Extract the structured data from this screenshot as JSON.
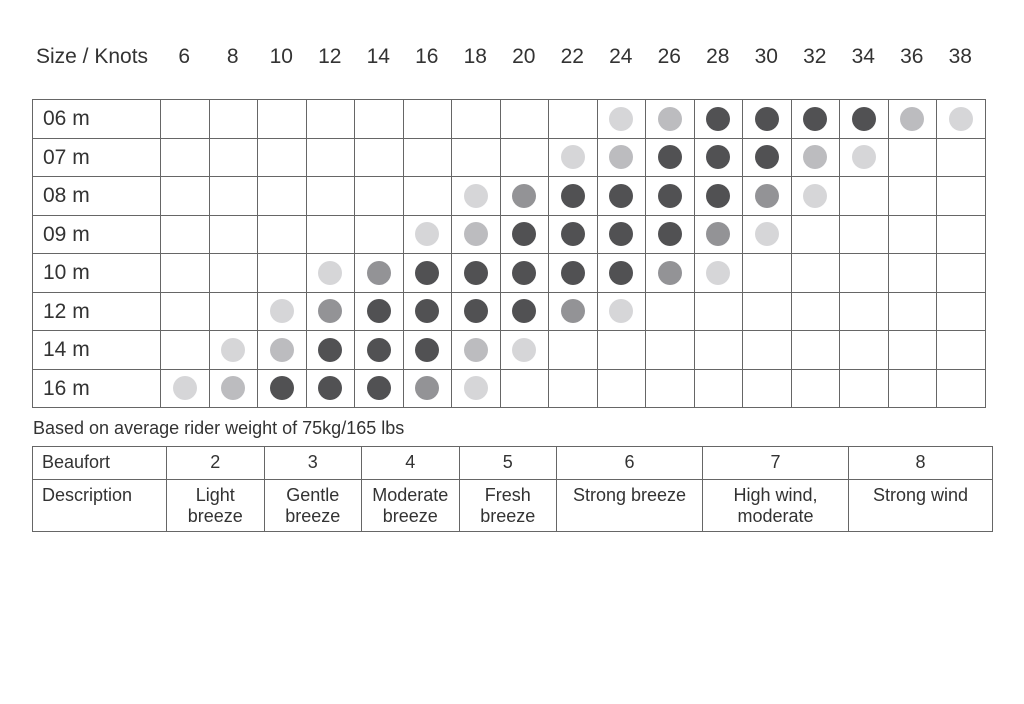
{
  "header": {
    "size_label": "Size / Knots"
  },
  "chart_data": {
    "type": "table",
    "xlabel": "Knots",
    "ylabel": "Size",
    "knots": [
      "6",
      "8",
      "10",
      "12",
      "14",
      "16",
      "18",
      "20",
      "22",
      "24",
      "26",
      "28",
      "30",
      "32",
      "34",
      "36",
      "38"
    ],
    "level_colors": {
      "0": "",
      "1": "#d6d6d8",
      "2": "#bcbcbf",
      "3": "#939396",
      "4": "#515153"
    },
    "rows": [
      {
        "size": "06 m",
        "levels": [
          0,
          0,
          0,
          0,
          0,
          0,
          0,
          0,
          0,
          1,
          2,
          4,
          4,
          4,
          4,
          2,
          1
        ]
      },
      {
        "size": "07 m",
        "levels": [
          0,
          0,
          0,
          0,
          0,
          0,
          0,
          0,
          1,
          2,
          4,
          4,
          4,
          2,
          1,
          0,
          0
        ]
      },
      {
        "size": "08 m",
        "levels": [
          0,
          0,
          0,
          0,
          0,
          0,
          1,
          3,
          4,
          4,
          4,
          4,
          3,
          1,
          0,
          0,
          0
        ]
      },
      {
        "size": "09 m",
        "levels": [
          0,
          0,
          0,
          0,
          0,
          1,
          2,
          4,
          4,
          4,
          4,
          3,
          1,
          0,
          0,
          0,
          0
        ]
      },
      {
        "size": "10 m",
        "levels": [
          0,
          0,
          0,
          1,
          3,
          4,
          4,
          4,
          4,
          4,
          3,
          1,
          0,
          0,
          0,
          0,
          0
        ]
      },
      {
        "size": "12 m",
        "levels": [
          0,
          0,
          1,
          3,
          4,
          4,
          4,
          4,
          3,
          1,
          0,
          0,
          0,
          0,
          0,
          0,
          0
        ]
      },
      {
        "size": "14 m",
        "levels": [
          0,
          1,
          2,
          4,
          4,
          4,
          2,
          1,
          0,
          0,
          0,
          0,
          0,
          0,
          0,
          0,
          0
        ]
      },
      {
        "size": "16 m",
        "levels": [
          1,
          2,
          4,
          4,
          4,
          3,
          1,
          0,
          0,
          0,
          0,
          0,
          0,
          0,
          0,
          0,
          0
        ]
      }
    ]
  },
  "note": "Based on average rider weight of 75kg/165 lbs",
  "beaufort_table": {
    "row1_label": "Beaufort",
    "row2_label": "Description",
    "columns": [
      {
        "force": "2",
        "desc": [
          "Light",
          "breeze"
        ]
      },
      {
        "force": "3",
        "desc": [
          "Gentle",
          "breeze"
        ]
      },
      {
        "force": "4",
        "desc": [
          "Moderate",
          "breeze"
        ]
      },
      {
        "force": "5",
        "desc": [
          "Fresh",
          "breeze"
        ]
      },
      {
        "force": "6",
        "desc": [
          "Strong breeze"
        ]
      },
      {
        "force": "7",
        "desc": [
          "High wind,",
          "moderate"
        ]
      },
      {
        "force": "8",
        "desc": [
          "Strong wind"
        ]
      }
    ]
  }
}
